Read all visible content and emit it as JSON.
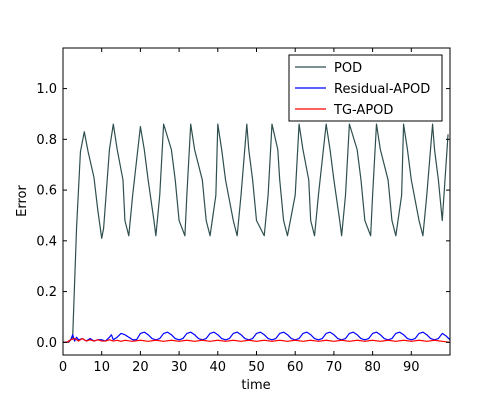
{
  "chart_data": {
    "type": "line",
    "title": "",
    "xlabel": "time",
    "ylabel": "Error",
    "xlim": [
      0,
      100
    ],
    "ylim": [
      -0.05,
      1.16
    ],
    "x_ticks": [
      0,
      10,
      20,
      30,
      40,
      50,
      60,
      70,
      80,
      90
    ],
    "y_ticks": [
      0.0,
      0.2,
      0.4,
      0.6,
      0.8,
      1.0
    ],
    "x_tick_labels": [
      "0",
      "10",
      "20",
      "30",
      "40",
      "50",
      "60",
      "70",
      "80",
      "90"
    ],
    "y_tick_labels": [
      "0.0",
      "0.2",
      "0.4",
      "0.6",
      "0.8",
      "1.0"
    ],
    "grid": false,
    "legend_position": "top-right",
    "series": [
      {
        "name": "POD",
        "color": "#2f4f4f",
        "x": [
          0,
          1.5,
          2.5,
          3.5,
          4.5,
          5.5,
          6.5,
          8,
          9,
          10,
          10.5,
          12,
          13,
          14,
          15.5,
          16,
          17,
          18,
          20,
          21,
          22,
          23.5,
          24,
          25,
          26,
          28,
          29,
          30,
          31.5,
          32,
          33,
          34,
          36,
          37,
          38,
          39.5,
          40,
          41,
          42,
          44,
          45,
          46,
          47.5,
          48,
          49,
          50,
          52,
          53,
          54,
          55.5,
          56,
          57,
          58,
          60,
          61,
          62,
          63.5,
          64,
          65,
          66,
          68,
          69,
          70,
          71.5,
          72,
          73,
          74,
          76,
          77,
          78,
          79.5,
          80,
          81,
          82,
          84,
          85,
          86,
          87.5,
          88,
          89,
          90,
          92,
          93,
          94,
          95.5,
          96,
          97,
          98,
          99.5
        ],
        "y": [
          0.0,
          0.0,
          0.02,
          0.45,
          0.75,
          0.83,
          0.75,
          0.65,
          0.52,
          0.41,
          0.45,
          0.76,
          0.86,
          0.76,
          0.64,
          0.48,
          0.42,
          0.58,
          0.85,
          0.76,
          0.64,
          0.48,
          0.42,
          0.58,
          0.86,
          0.76,
          0.64,
          0.48,
          0.42,
          0.58,
          0.86,
          0.76,
          0.64,
          0.48,
          0.42,
          0.58,
          0.86,
          0.76,
          0.64,
          0.48,
          0.42,
          0.58,
          0.86,
          0.76,
          0.64,
          0.48,
          0.42,
          0.58,
          0.86,
          0.76,
          0.64,
          0.48,
          0.42,
          0.58,
          0.86,
          0.76,
          0.64,
          0.48,
          0.42,
          0.58,
          0.86,
          0.76,
          0.64,
          0.48,
          0.42,
          0.58,
          0.86,
          0.76,
          0.64,
          0.48,
          0.42,
          0.58,
          0.86,
          0.76,
          0.64,
          0.48,
          0.42,
          0.58,
          0.86,
          0.76,
          0.64,
          0.48,
          0.42,
          0.58,
          0.86,
          0.76,
          0.64,
          0.48,
          0.82
        ]
      },
      {
        "name": "Residual-APOD",
        "color": "#0000ff",
        "x": [
          0,
          1,
          2,
          2.5,
          3,
          3.5,
          4,
          5,
          6,
          7,
          8,
          9,
          10,
          11,
          12,
          12.5,
          13,
          14,
          15,
          16,
          17,
          18,
          19,
          20,
          21,
          22,
          23,
          24,
          25,
          26,
          27,
          28,
          29,
          30,
          31,
          32,
          33,
          34,
          35,
          36,
          37,
          38,
          39,
          40,
          41,
          42,
          43,
          44,
          45,
          46,
          47,
          48,
          49,
          50,
          51,
          52,
          53,
          54,
          55,
          56,
          57,
          58,
          59,
          60,
          61,
          62,
          63,
          64,
          65,
          66,
          67,
          68,
          69,
          70,
          71,
          72,
          73,
          74,
          75,
          76,
          77,
          78,
          79,
          80,
          81,
          82,
          83,
          84,
          85,
          86,
          87,
          88,
          89,
          90,
          91,
          92,
          93,
          94,
          95,
          96,
          97,
          98,
          99,
          100
        ],
        "y": [
          0.0,
          0.0,
          0.01,
          0.03,
          0.005,
          0.02,
          0.01,
          0.015,
          0.005,
          0.015,
          0.005,
          0.01,
          0.01,
          0.005,
          0.02,
          0.03,
          0.01,
          0.02,
          0.035,
          0.03,
          0.02,
          0.01,
          0.01,
          0.035,
          0.04,
          0.03,
          0.015,
          0.01,
          0.015,
          0.035,
          0.04,
          0.03,
          0.015,
          0.01,
          0.015,
          0.035,
          0.04,
          0.03,
          0.015,
          0.01,
          0.015,
          0.035,
          0.04,
          0.03,
          0.015,
          0.01,
          0.015,
          0.035,
          0.04,
          0.03,
          0.015,
          0.01,
          0.015,
          0.035,
          0.04,
          0.03,
          0.015,
          0.01,
          0.015,
          0.035,
          0.04,
          0.03,
          0.015,
          0.01,
          0.015,
          0.035,
          0.04,
          0.03,
          0.015,
          0.01,
          0.015,
          0.035,
          0.04,
          0.03,
          0.015,
          0.01,
          0.015,
          0.035,
          0.04,
          0.03,
          0.015,
          0.01,
          0.015,
          0.035,
          0.04,
          0.03,
          0.015,
          0.01,
          0.015,
          0.035,
          0.04,
          0.03,
          0.015,
          0.01,
          0.015,
          0.035,
          0.04,
          0.03,
          0.015,
          0.01,
          0.015,
          0.035,
          0.025,
          0.01
        ]
      },
      {
        "name": "TG-APOD",
        "color": "#ff0000",
        "x": [
          0,
          1,
          2,
          3,
          4,
          5,
          6,
          7,
          8,
          9,
          10,
          11,
          12,
          13,
          14,
          15,
          16,
          18,
          20,
          22,
          24,
          26,
          28,
          30,
          32,
          34,
          36,
          38,
          40,
          42,
          44,
          46,
          48,
          50,
          52,
          54,
          56,
          58,
          60,
          62,
          64,
          66,
          68,
          70,
          72,
          74,
          76,
          78,
          80,
          82,
          84,
          86,
          88,
          90,
          92,
          94,
          96,
          98,
          100
        ],
        "y": [
          0.0,
          0.0,
          0.01,
          0.015,
          0.005,
          0.015,
          0.005,
          0.01,
          0.005,
          0.01,
          0.005,
          0.005,
          0.01,
          0.005,
          0.008,
          0.004,
          0.008,
          0.004,
          0.008,
          0.004,
          0.008,
          0.004,
          0.008,
          0.004,
          0.008,
          0.004,
          0.008,
          0.004,
          0.008,
          0.004,
          0.008,
          0.004,
          0.008,
          0.004,
          0.008,
          0.004,
          0.008,
          0.004,
          0.008,
          0.004,
          0.008,
          0.004,
          0.008,
          0.004,
          0.008,
          0.004,
          0.008,
          0.004,
          0.008,
          0.004,
          0.008,
          0.004,
          0.008,
          0.004,
          0.008,
          0.004,
          0.008,
          0.004,
          0.0
        ]
      }
    ]
  }
}
